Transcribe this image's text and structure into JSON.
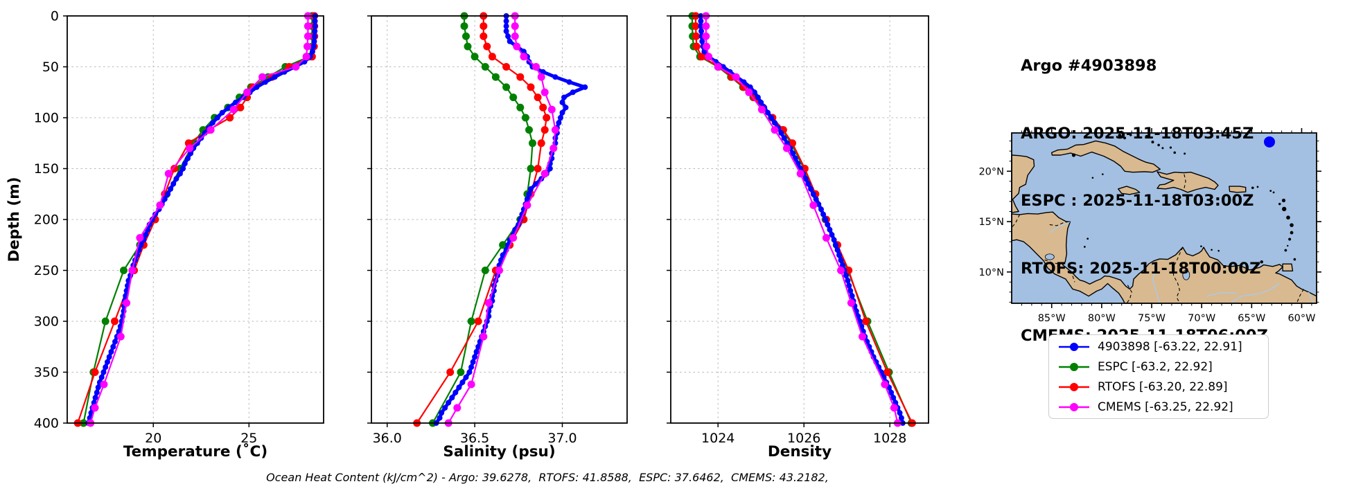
{
  "header": {
    "title_lines": [
      "Argo #4903898",
      "ARGO: 2025-11-18T03:45Z",
      "ESPC : 2025-11-18T03:00Z",
      "RTOFS: 2025-11-18T00:00Z",
      "CMEMS: 2025-11-18T06:00Z"
    ]
  },
  "footer": {
    "ohc_text": "Ocean Heat Content (kJ/cm^2) - Argo: 39.6278,  RTOFS: 41.8588,  ESPC: 37.6462,  CMEMS: 43.2182,"
  },
  "legend": {
    "items": [
      {
        "label": "4903898 [-63.22, 22.91]",
        "color": "#0000ff"
      },
      {
        "label": "ESPC [-63.2, 22.92]",
        "color": "#008000"
      },
      {
        "label": "RTOFS [-63.20, 22.89]",
        "color": "#ff0000"
      },
      {
        "label": "CMEMS [-63.25, 22.92]",
        "color": "#ff00ff"
      }
    ]
  },
  "map": {
    "ocean_color": "#a3c0e2",
    "land_color": "#d9b98f",
    "river_color": "#a9cbec",
    "float_marker_color": "#0000ff",
    "float_lon": -63.22,
    "float_lat": 22.91,
    "lon_ticks": [
      -85,
      -80,
      -75,
      -70,
      -65,
      -60
    ],
    "lon_labels": [
      "85°W",
      "80°W",
      "75°W",
      "70°W",
      "65°W",
      "60°W"
    ],
    "lat_ticks": [
      20,
      15,
      10
    ],
    "lat_labels": [
      "20°N",
      "15°N",
      "10°N"
    ]
  },
  "chart_data": {
    "type": "line",
    "subtype": "ocean-depth-profiles",
    "ylabel": "Depth (m)",
    "ylim": [
      0,
      400
    ],
    "yticks": [
      0,
      50,
      100,
      150,
      200,
      250,
      300,
      350,
      400
    ],
    "ytick_labels": [
      "0",
      "50",
      "100",
      "150",
      "200",
      "250",
      "300",
      "350",
      "400"
    ],
    "grid": true,
    "panels": [
      {
        "id": "temperature",
        "xlabel": "Temperature (˚C)",
        "xlim": [
          15.5,
          28.9
        ],
        "xticks": [
          20,
          25
        ],
        "xtick_labels": [
          "20",
          "25"
        ],
        "value_key": "temp"
      },
      {
        "id": "salinity",
        "xlabel": "Salinity (psu)",
        "xlim": [
          35.91,
          37.37
        ],
        "xticks": [
          36.0,
          36.5,
          37.0
        ],
        "xtick_labels": [
          "36.0",
          "36.5",
          "37.0"
        ],
        "value_key": "sal"
      },
      {
        "id": "density",
        "xlabel": "Density",
        "xlim": [
          1022.9,
          1028.9
        ],
        "xticks": [
          1024,
          1026,
          1028
        ],
        "xtick_labels": [
          "1024",
          "1026",
          "1028"
        ],
        "value_key": "dens"
      }
    ],
    "series": [
      {
        "name": "4903898",
        "color": "#0000ff",
        "line_width": 5,
        "marker_radius": 4,
        "depths": [
          0,
          5,
          10,
          15,
          20,
          25,
          30,
          35,
          40,
          45,
          50,
          55,
          60,
          65,
          70,
          75,
          80,
          85,
          90,
          95,
          100,
          105,
          110,
          115,
          120,
          125,
          130,
          135,
          140,
          145,
          150,
          155,
          160,
          165,
          170,
          175,
          180,
          185,
          190,
          195,
          200,
          205,
          210,
          215,
          220,
          225,
          230,
          235,
          240,
          245,
          250,
          255,
          260,
          265,
          270,
          275,
          280,
          285,
          290,
          295,
          300,
          305,
          310,
          315,
          320,
          325,
          330,
          335,
          340,
          345,
          350,
          355,
          360,
          365,
          370,
          375,
          380,
          385,
          390,
          395,
          400
        ],
        "temp": [
          28.45,
          28.45,
          28.45,
          28.44,
          28.43,
          28.41,
          28.38,
          28.32,
          28.2,
          27.9,
          27.4,
          26.85,
          26.35,
          25.85,
          25.4,
          25.05,
          24.7,
          24.3,
          23.95,
          23.6,
          23.35,
          23.1,
          22.9,
          22.7,
          22.5,
          22.3,
          22.1,
          21.95,
          21.8,
          21.65,
          21.55,
          21.4,
          21.2,
          21.05,
          20.9,
          20.75,
          20.6,
          20.45,
          20.3,
          20.1,
          19.95,
          19.8,
          19.7,
          19.6,
          19.5,
          19.35,
          19.25,
          19.15,
          19.05,
          18.95,
          18.85,
          18.8,
          18.7,
          18.65,
          18.6,
          18.55,
          18.5,
          18.47,
          18.45,
          18.4,
          18.35,
          18.28,
          18.2,
          18.1,
          18.0,
          17.9,
          17.8,
          17.7,
          17.6,
          17.5,
          17.4,
          17.3,
          17.2,
          17.12,
          17.05,
          16.97,
          16.9,
          16.82,
          16.75,
          16.68,
          16.6
        ],
        "sal": [
          36.68,
          36.68,
          36.68,
          36.68,
          36.69,
          36.7,
          36.74,
          36.78,
          36.8,
          36.81,
          36.83,
          36.89,
          36.96,
          37.04,
          37.13,
          37.06,
          37.01,
          37.0,
          37.02,
          37.0,
          36.99,
          36.98,
          36.97,
          36.97,
          36.96,
          36.96,
          36.95,
          36.94,
          36.94,
          36.93,
          36.93,
          36.91,
          36.88,
          36.85,
          36.82,
          36.81,
          36.8,
          36.79,
          36.78,
          36.77,
          36.76,
          36.75,
          36.73,
          36.72,
          36.7,
          36.69,
          36.68,
          36.66,
          36.65,
          36.64,
          36.64,
          36.63,
          36.62,
          36.61,
          36.61,
          36.6,
          36.6,
          36.59,
          36.58,
          36.58,
          36.57,
          36.56,
          36.55,
          36.54,
          36.53,
          36.52,
          36.51,
          36.5,
          36.49,
          36.48,
          36.47,
          36.45,
          36.43,
          36.41,
          36.39,
          36.37,
          36.35,
          36.33,
          36.31,
          36.3,
          36.28
        ],
        "dens": [
          1023.6,
          1023.6,
          1023.6,
          1023.61,
          1023.62,
          1023.63,
          1023.65,
          1023.68,
          1023.78,
          1023.95,
          1024.12,
          1024.28,
          1024.44,
          1024.6,
          1024.75,
          1024.85,
          1024.93,
          1025.0,
          1025.08,
          1025.16,
          1025.24,
          1025.32,
          1025.4,
          1025.47,
          1025.54,
          1025.61,
          1025.68,
          1025.74,
          1025.8,
          1025.86,
          1025.92,
          1025.98,
          1026.04,
          1026.1,
          1026.16,
          1026.22,
          1026.28,
          1026.34,
          1026.4,
          1026.45,
          1026.5,
          1026.55,
          1026.6,
          1026.65,
          1026.7,
          1026.74,
          1026.78,
          1026.82,
          1026.86,
          1026.9,
          1026.94,
          1026.98,
          1027.02,
          1027.05,
          1027.08,
          1027.12,
          1027.15,
          1027.18,
          1027.22,
          1027.26,
          1027.3,
          1027.34,
          1027.38,
          1027.42,
          1027.47,
          1027.52,
          1027.57,
          1027.62,
          1027.68,
          1027.74,
          1027.8,
          1027.86,
          1027.92,
          1027.98,
          1028.03,
          1028.08,
          1028.13,
          1028.18,
          1028.23,
          1028.27,
          1028.3
        ]
      },
      {
        "name": "ESPC",
        "color": "#008000",
        "line_width": 2.2,
        "marker_radius": 5.5,
        "depths": [
          0,
          10,
          20,
          30,
          40,
          50,
          60,
          70,
          80,
          90,
          100,
          112,
          125,
          150,
          175,
          200,
          225,
          250,
          300,
          350,
          400
        ],
        "temp": [
          28.3,
          28.3,
          28.3,
          28.3,
          28.15,
          26.9,
          26.0,
          25.1,
          24.5,
          23.9,
          23.2,
          22.6,
          22.1,
          21.4,
          20.7,
          20.05,
          19.3,
          18.45,
          17.5,
          16.87,
          16.35
        ],
        "sal": [
          36.44,
          36.44,
          36.45,
          36.46,
          36.5,
          36.56,
          36.62,
          36.68,
          36.72,
          36.76,
          36.79,
          36.81,
          36.83,
          36.82,
          36.8,
          36.76,
          36.66,
          36.56,
          36.48,
          36.42,
          36.26
        ],
        "dens": [
          1023.4,
          1023.4,
          1023.41,
          1023.43,
          1023.58,
          1024.0,
          1024.3,
          1024.58,
          1024.82,
          1025.04,
          1025.25,
          1025.5,
          1025.7,
          1026.0,
          1026.25,
          1026.5,
          1026.76,
          1027.02,
          1027.48,
          1027.98,
          1028.5
        ]
      },
      {
        "name": "RTOFS",
        "color": "#ff0000",
        "line_width": 2.2,
        "marker_radius": 5.5,
        "depths": [
          0,
          10,
          20,
          30,
          40,
          50,
          60,
          70,
          80,
          90,
          100,
          112,
          125,
          150,
          175,
          200,
          225,
          250,
          300,
          350,
          400
        ],
        "temp": [
          28.42,
          28.42,
          28.42,
          28.4,
          28.3,
          27.1,
          26.2,
          25.2,
          24.9,
          24.55,
          24.0,
          22.9,
          21.85,
          21.1,
          20.6,
          20.1,
          19.5,
          19.0,
          17.98,
          16.95,
          16.05
        ],
        "sal": [
          36.55,
          36.55,
          36.55,
          36.57,
          36.6,
          36.68,
          36.76,
          36.82,
          36.86,
          36.89,
          36.91,
          36.9,
          36.88,
          36.86,
          36.82,
          36.78,
          36.7,
          36.62,
          36.52,
          36.36,
          36.17
        ],
        "dens": [
          1023.48,
          1023.48,
          1023.49,
          1023.5,
          1023.62,
          1024.02,
          1024.32,
          1024.6,
          1024.84,
          1025.05,
          1025.27,
          1025.52,
          1025.73,
          1026.02,
          1026.27,
          1026.52,
          1026.78,
          1027.04,
          1027.44,
          1027.94,
          1028.52
        ]
      },
      {
        "name": "CMEMS",
        "color": "#ff00ff",
        "line_width": 2.2,
        "marker_radius": 5.5,
        "depths": [
          0,
          10,
          20,
          30,
          40,
          50,
          60,
          75,
          92,
          112,
          130,
          155,
          186,
          218,
          250,
          282,
          315,
          362,
          385,
          400
        ],
        "temp": [
          28.08,
          28.08,
          28.08,
          28.05,
          28.0,
          27.45,
          25.7,
          24.9,
          24.2,
          23.0,
          21.9,
          20.8,
          20.35,
          19.3,
          18.9,
          18.6,
          18.3,
          17.42,
          16.95,
          16.72
        ],
        "sal": [
          36.73,
          36.73,
          36.73,
          36.74,
          36.78,
          36.85,
          36.88,
          36.9,
          36.94,
          36.96,
          36.95,
          36.9,
          36.8,
          36.72,
          36.64,
          36.58,
          36.55,
          36.48,
          36.4,
          36.35
        ],
        "dens": [
          1023.72,
          1023.72,
          1023.72,
          1023.73,
          1023.78,
          1024.0,
          1024.42,
          1024.72,
          1025.02,
          1025.32,
          1025.6,
          1025.92,
          1026.22,
          1026.52,
          1026.86,
          1027.1,
          1027.36,
          1027.88,
          1028.1,
          1028.18
        ]
      }
    ]
  }
}
